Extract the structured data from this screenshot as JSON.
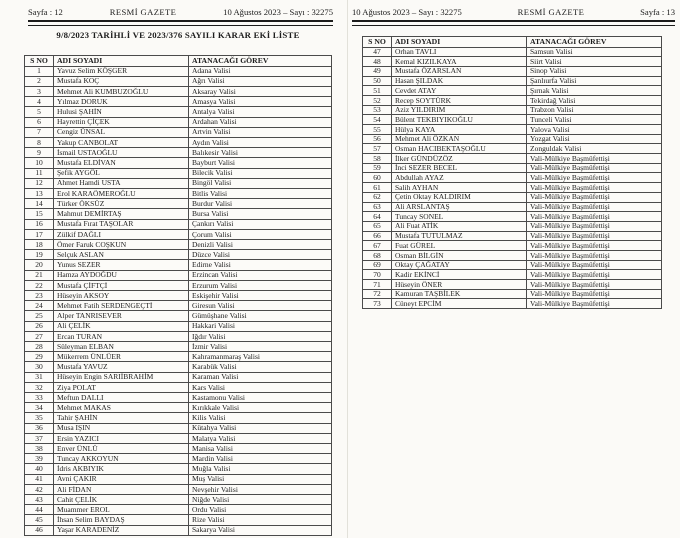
{
  "colors": {
    "paper": "#fbfaf7",
    "ink": "#1d1d1d",
    "table_border": "#4b4b4b",
    "page_seam": "#e2e1da"
  },
  "left_page": {
    "header": {
      "left": "Sayfa : 12",
      "center": "RESMİ GAZETE",
      "right": "10 Ağustos 2023 – Sayı : 32275"
    },
    "title": "9/8/2023 TARİHLİ VE 2023/376 SAYILI KARAR EKİ LİSTE",
    "table": {
      "columns": [
        "S NO",
        "ADI SOYADI",
        "ATANACAĞI GÖREV"
      ],
      "rows": [
        [
          "1",
          "Yavuz Selim KÖŞGER",
          "Adana Valisi"
        ],
        [
          "2",
          "Mustafa KOÇ",
          "Ağrı Valisi"
        ],
        [
          "3",
          "Mehmet Ali KUMBUZOĞLU",
          "Aksaray Valisi"
        ],
        [
          "4",
          "Yılmaz DORUK",
          "Amasya Valisi"
        ],
        [
          "5",
          "Hulusi ŞAHİN",
          "Antalya Valisi"
        ],
        [
          "6",
          "Hayrettin ÇİÇEK",
          "Ardahan Valisi"
        ],
        [
          "7",
          "Cengiz ÜNSAL",
          "Artvin Valisi"
        ],
        [
          "8",
          "Yakup CANBOLAT",
          "Aydın Valisi"
        ],
        [
          "9",
          "İsmail USTAOĞLU",
          "Balıkesir Valisi"
        ],
        [
          "10",
          "Mustafa ELDİVAN",
          "Bayburt Valisi"
        ],
        [
          "11",
          "Şefik AYGÖL",
          "Bilecik Valisi"
        ],
        [
          "12",
          "Ahmet Hamdi USTA",
          "Bingöl Valisi"
        ],
        [
          "13",
          "Erol KARAÖMEROĞLU",
          "Bitlis Valisi"
        ],
        [
          "14",
          "Türker ÖKSÜZ",
          "Burdur Valisi"
        ],
        [
          "15",
          "Mahmut DEMİRTAŞ",
          "Bursa Valisi"
        ],
        [
          "16",
          "Mustafa Fırat TAŞOLAR",
          "Çankırı Valisi"
        ],
        [
          "17",
          "Zülkif DAĞLI",
          "Çorum Valisi"
        ],
        [
          "18",
          "Ömer Faruk COŞKUN",
          "Denizli Valisi"
        ],
        [
          "19",
          "Selçuk ASLAN",
          "Düzce Valisi"
        ],
        [
          "20",
          "Yunus SEZER",
          "Edirne Valisi"
        ],
        [
          "21",
          "Hamza AYDOĞDU",
          "Erzincan Valisi"
        ],
        [
          "22",
          "Mustafa ÇİFTÇİ",
          "Erzurum Valisi"
        ],
        [
          "23",
          "Hüseyin AKSOY",
          "Eskişehir Valisi"
        ],
        [
          "24",
          "Mehmet Fatih SERDENGEÇTİ",
          "Giresun Valisi"
        ],
        [
          "25",
          "Alper TANRISEVER",
          "Gümüşhane Valisi"
        ],
        [
          "26",
          "Ali ÇELİK",
          "Hakkari Valisi"
        ],
        [
          "27",
          "Ercan TURAN",
          "Iğdır Valisi"
        ],
        [
          "28",
          "Süleyman ELBAN",
          "İzmir Valisi"
        ],
        [
          "29",
          "Mükerrem ÜNLÜER",
          "Kahramanmaraş Valisi"
        ],
        [
          "30",
          "Mustafa YAVUZ",
          "Karabük Valisi"
        ],
        [
          "31",
          "Hüseyin Engin SARIİBRAHİM",
          "Karaman Valisi"
        ],
        [
          "32",
          "Ziya POLAT",
          "Kars Valisi"
        ],
        [
          "33",
          "Meftun DALLI",
          "Kastamonu Valisi"
        ],
        [
          "34",
          "Mehmet MAKAS",
          "Kırıkkale Valisi"
        ],
        [
          "35",
          "Tahir ŞAHİN",
          "Kilis Valisi"
        ],
        [
          "36",
          "Musa IŞIN",
          "Kütahya Valisi"
        ],
        [
          "37",
          "Ersin YAZICI",
          "Malatya Valisi"
        ],
        [
          "38",
          "Enver ÜNLÜ",
          "Manisa Valisi"
        ],
        [
          "39",
          "Tuncay AKKOYUN",
          "Mardin Valisi"
        ],
        [
          "40",
          "İdris AKBIYIK",
          "Muğla Valisi"
        ],
        [
          "41",
          "Avni ÇAKIR",
          "Muş Valisi"
        ],
        [
          "42",
          "Ali FİDAN",
          "Nevşehir Valisi"
        ],
        [
          "43",
          "Cahit ÇELİK",
          "Niğde Valisi"
        ],
        [
          "44",
          "Muammer EROL",
          "Ordu Valisi"
        ],
        [
          "45",
          "İhsan Selim BAYDAŞ",
          "Rize Valisi"
        ],
        [
          "46",
          "Yaşar KARADENİZ",
          "Sakarya Valisi"
        ]
      ]
    }
  },
  "right_page": {
    "header": {
      "left": "10 Ağustos 2023 – Sayı : 32275",
      "center": "RESMİ GAZETE",
      "right": "Sayfa : 13"
    },
    "table": {
      "columns": [
        "S NO",
        "ADI SOYADI",
        "ATANACAĞI GÖREV"
      ],
      "rows": [
        [
          "47",
          "Orhan TAVLI",
          "Samsun Valisi"
        ],
        [
          "48",
          "Kemal KIZILKAYA",
          "Siirt Valisi"
        ],
        [
          "49",
          "Mustafa ÖZARSLAN",
          "Sinop Valisi"
        ],
        [
          "50",
          "Hasan ŞILDAK",
          "Şanlıurfa Valisi"
        ],
        [
          "51",
          "Cevdet ATAY",
          "Şırnak Valisi"
        ],
        [
          "52",
          "Recep SOYTÜRK",
          "Tekirdağ Valisi"
        ],
        [
          "53",
          "Aziz YILDIRIM",
          "Trabzon Valisi"
        ],
        [
          "54",
          "Bülent TEKBIYIKOĞLU",
          "Tunceli Valisi"
        ],
        [
          "55",
          "Hülya KAYA",
          "Yalova Valisi"
        ],
        [
          "56",
          "Mehmet Ali ÖZKAN",
          "Yozgat Valisi"
        ],
        [
          "57",
          "Osman HACIBEKTAŞOĞLU",
          "Zonguldak Valisi"
        ],
        [
          "58",
          "İlker GÜNDÜZÖZ",
          "Vali-Mülkiye Başmüfettişi"
        ],
        [
          "59",
          "İnci SEZER BECEL",
          "Vali-Mülkiye Başmüfettişi"
        ],
        [
          "60",
          "Abdullah AYAZ",
          "Vali-Mülkiye Başmüfettişi"
        ],
        [
          "61",
          "Salih AYHAN",
          "Vali-Mülkiye Başmüfettişi"
        ],
        [
          "62",
          "Çetin Oktay KALDIRIM",
          "Vali-Mülkiye Başmüfettişi"
        ],
        [
          "63",
          "Ali ARSLANTAŞ",
          "Vali-Mülkiye Başmüfettişi"
        ],
        [
          "64",
          "Tuncay SONEL",
          "Vali-Mülkiye Başmüfettişi"
        ],
        [
          "65",
          "Ali Fuat ATİK",
          "Vali-Mülkiye Başmüfettişi"
        ],
        [
          "66",
          "Mustafa TUTULMAZ",
          "Vali-Mülkiye Başmüfettişi"
        ],
        [
          "67",
          "Fuat GÜREL",
          "Vali-Mülkiye Başmüfettişi"
        ],
        [
          "68",
          "Osman BİLGİN",
          "Vali-Mülkiye Başmüfettişi"
        ],
        [
          "69",
          "Oktay ÇAĞATAY",
          "Vali-Mülkiye Başmüfettişi"
        ],
        [
          "70",
          "Kadir EKİNCİ",
          "Vali-Mülkiye Başmüfettişi"
        ],
        [
          "71",
          "Hüseyin ÖNER",
          "Vali-Mülkiye Başmüfettişi"
        ],
        [
          "72",
          "Kamuran TAŞBİLEK",
          "Vali-Mülkiye Başmüfettişi"
        ],
        [
          "73",
          "Cüneyt EPCİM",
          "Vali-Mülkiye Başmüfettişi"
        ]
      ]
    }
  }
}
